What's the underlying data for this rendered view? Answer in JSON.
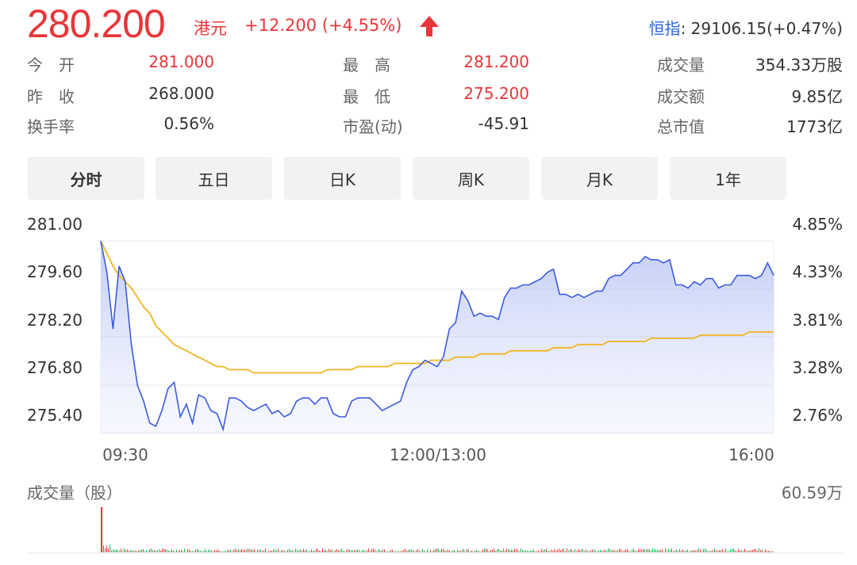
{
  "quote": {
    "price": "280.200",
    "currency": "港元",
    "change": "+12.200 (+4.55%)",
    "direction_icon": "up-arrow-icon",
    "index_label": "恒指",
    "index_value": ": 29106.15(+0.47%)"
  },
  "stats": [
    {
      "label": "今　开",
      "value": "281.000",
      "color": "#e8363a"
    },
    {
      "label": "最　高",
      "value": "281.200",
      "color": "#e8363a"
    },
    {
      "label": "成交量",
      "value": "354.33万股",
      "color": "#333333"
    },
    {
      "label": "昨　收",
      "value": "268.000",
      "color": "#333333"
    },
    {
      "label": "最　低",
      "value": "275.200",
      "color": "#e8363a"
    },
    {
      "label": "成交额",
      "value": "9.85亿",
      "color": "#333333"
    },
    {
      "label": "换手率",
      "value": "0.56%",
      "color": "#333333"
    },
    {
      "label": "市盈(动)",
      "value": "-45.91",
      "color": "#333333"
    },
    {
      "label": "总市值",
      "value": "1773亿",
      "color": "#333333"
    }
  ],
  "tabs": [
    "分时",
    "五日",
    "日K",
    "周K",
    "月K",
    "1年"
  ],
  "active_tab": "分时",
  "chart": {
    "y_left_ticks": [
      "281.00",
      "279.60",
      "278.20",
      "276.80",
      "275.40"
    ],
    "y_right_ticks": [
      "4.85%",
      "4.33%",
      "3.81%",
      "3.28%",
      "2.76%"
    ],
    "x_ticks": [
      "09:30",
      "12:00/13:00",
      "16:00"
    ],
    "volume_label": "成交量（股）",
    "volume_max_label": "60.59万"
  },
  "chart_data": {
    "type": "line",
    "ylim": [
      275.4,
      281.0
    ],
    "y2lim": [
      2.76,
      4.85
    ],
    "x_ticks": [
      "09:30",
      "12:00/13:00",
      "16:00"
    ],
    "series": [
      {
        "color": "#3d5be0",
        "values": [
          281.0,
          280.0,
          278.2,
          280.2,
          279.7,
          277.7,
          276.4,
          275.9,
          275.2,
          275.1,
          275.6,
          276.3,
          276.5,
          275.4,
          275.8,
          275.2,
          276.1,
          276.0,
          275.6,
          275.5,
          275.0,
          276.0,
          276.0,
          275.9,
          275.7,
          275.6,
          275.7,
          275.8,
          275.5,
          275.6,
          275.4,
          275.5,
          275.9,
          276.0,
          276.0,
          275.8,
          276.0,
          276.0,
          275.5,
          275.4,
          275.4,
          275.9,
          276.0,
          276.0,
          276.0,
          275.8,
          275.6,
          275.7,
          275.8,
          275.9,
          276.5,
          276.9,
          277.0,
          277.2,
          277.1,
          277.0,
          277.3,
          278.2,
          278.4,
          279.4,
          279.1,
          278.6,
          278.7,
          278.6,
          278.6,
          278.5,
          279.2,
          279.5,
          279.5,
          279.6,
          279.6,
          279.7,
          279.8,
          280.0,
          280.1,
          279.3,
          279.3,
          279.2,
          279.3,
          279.2,
          279.3,
          279.4,
          279.4,
          279.8,
          279.9,
          279.9,
          280.1,
          280.3,
          280.3,
          280.5,
          280.4,
          280.4,
          280.3,
          280.4,
          279.6,
          279.6,
          279.5,
          279.7,
          279.6,
          279.8,
          279.8,
          279.5,
          279.6,
          279.6,
          279.9,
          279.9,
          279.9,
          279.8,
          279.9,
          280.3,
          279.9
        ]
      },
      {
        "color": "#f1b521",
        "values": [
          281.0,
          280.6,
          280.2,
          279.9,
          279.7,
          279.5,
          279.2,
          278.9,
          278.7,
          278.3,
          278.1,
          277.9,
          277.7,
          277.6,
          277.5,
          277.4,
          277.3,
          277.2,
          277.1,
          277.0,
          277.0,
          276.9,
          276.9,
          276.9,
          276.9,
          276.8,
          276.8,
          276.8,
          276.8,
          276.8,
          276.8,
          276.8,
          276.8,
          276.8,
          276.8,
          276.8,
          276.8,
          276.9,
          276.9,
          276.9,
          276.9,
          276.9,
          277.0,
          277.0,
          277.0,
          277.0,
          277.0,
          277.0,
          277.1,
          277.1,
          277.1,
          277.1,
          277.1,
          277.1,
          277.2,
          277.2,
          277.2,
          277.2,
          277.3,
          277.3,
          277.3,
          277.3,
          277.4,
          277.4,
          277.4,
          277.4,
          277.4,
          277.5,
          277.5,
          277.5,
          277.5,
          277.5,
          277.5,
          277.5,
          277.6,
          277.6,
          277.6,
          277.6,
          277.7,
          277.7,
          277.7,
          277.7,
          277.7,
          277.8,
          277.8,
          277.8,
          277.8,
          277.8,
          277.8,
          277.8,
          277.9,
          277.9,
          277.9,
          277.9,
          277.9,
          277.9,
          277.9,
          277.9,
          278.0,
          278.0,
          278.0,
          278.0,
          278.0,
          278.0,
          278.0,
          278.0,
          278.1,
          278.1,
          278.1,
          278.1,
          278.1
        ]
      }
    ],
    "volume_color_up": "#e8363a",
    "volume_color_down": "#2aa85a"
  }
}
